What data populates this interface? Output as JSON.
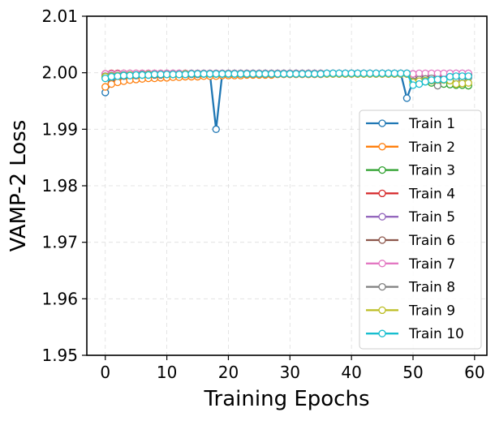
{
  "chart_data": {
    "type": "line",
    "title": "",
    "xlabel": "Training Epochs",
    "ylabel": "VAMP-2 Loss",
    "xlim": [
      -3,
      62
    ],
    "ylim": [
      1.95,
      2.01
    ],
    "xticks": [
      0,
      10,
      20,
      30,
      40,
      50,
      60
    ],
    "yticks": [
      1.95,
      1.96,
      1.97,
      1.98,
      1.99,
      2.0,
      2.01
    ],
    "ytick_labels": [
      "1.95",
      "1.96",
      "1.97",
      "1.98",
      "1.99",
      "2.00",
      "2.01"
    ],
    "grid": true,
    "legend_position": "right",
    "x": [
      0,
      1,
      2,
      3,
      4,
      5,
      6,
      7,
      8,
      9,
      10,
      11,
      12,
      13,
      14,
      15,
      16,
      17,
      18,
      19,
      20,
      21,
      22,
      23,
      24,
      25,
      26,
      27,
      28,
      29,
      30,
      31,
      32,
      33,
      34,
      35,
      36,
      37,
      38,
      39,
      40,
      41,
      42,
      43,
      44,
      45,
      46,
      47,
      48,
      49,
      50,
      51,
      52,
      53,
      54,
      55,
      56,
      57,
      58,
      59
    ],
    "series": [
      {
        "name": "Train 1",
        "color": "#1f77b4",
        "values": [
          1.9965,
          1.9982,
          1.9989,
          1.9992,
          1.9994,
          1.9995,
          1.9996,
          1.9996,
          1.9997,
          1.9997,
          1.9997,
          1.9998,
          1.9998,
          1.9998,
          1.9998,
          1.9998,
          1.9998,
          1.9998,
          1.99,
          1.9998,
          1.9998,
          1.9998,
          1.9999,
          1.9999,
          1.9999,
          1.9999,
          1.9999,
          1.9999,
          1.9999,
          1.9999,
          1.9999,
          1.9999,
          1.9999,
          1.9999,
          1.9999,
          1.9999,
          1.9999,
          1.9999,
          1.9999,
          1.9999,
          1.9999,
          1.9999,
          1.9999,
          1.9999,
          1.9999,
          1.9999,
          1.9999,
          1.9999,
          1.9999,
          1.9955,
          1.9985,
          1.999,
          1.9992,
          1.9993,
          1.9994,
          1.9995,
          1.9995,
          1.9996,
          1.9996,
          1.9996
        ]
      },
      {
        "name": "Train 2",
        "color": "#ff7f0e",
        "values": [
          1.9975,
          1.998,
          1.9983,
          1.9985,
          1.9987,
          1.9988,
          1.9989,
          1.999,
          1.999,
          1.9991,
          1.9991,
          1.9992,
          1.9992,
          1.9993,
          1.9993,
          1.9993,
          1.9994,
          1.9994,
          1.9994,
          1.9995,
          1.9995,
          1.9995,
          1.9995,
          1.9996,
          1.9996,
          1.9996,
          1.9996,
          1.9996,
          1.9997,
          1.9997,
          1.9997,
          1.9997,
          1.9997,
          1.9997,
          1.9997,
          1.9997,
          1.9998,
          1.9998,
          1.9998,
          1.9998,
          1.9998,
          1.9998,
          1.9998,
          1.9998,
          1.9998,
          1.9998,
          1.9998,
          1.9998,
          1.9998,
          1.9998,
          1.9992,
          1.9993,
          1.9994,
          1.9994,
          1.9995,
          1.9995,
          1.9996,
          1.9996,
          1.9996,
          1.9997
        ]
      },
      {
        "name": "Train 3",
        "color": "#2ca02c",
        "values": [
          1.9995,
          1.9996,
          1.9996,
          1.9997,
          1.9997,
          1.9997,
          1.9998,
          1.9998,
          1.9998,
          1.9998,
          1.9998,
          1.9998,
          1.9998,
          1.9998,
          1.9998,
          1.9998,
          1.9998,
          1.9998,
          1.9998,
          1.9998,
          1.9999,
          1.9999,
          1.9999,
          1.9999,
          1.9999,
          1.9999,
          1.9999,
          1.9999,
          1.9999,
          1.9999,
          1.9999,
          1.9999,
          1.9999,
          1.9999,
          1.9999,
          1.9999,
          1.9999,
          1.9999,
          1.9999,
          1.9999,
          1.9999,
          1.9999,
          1.9999,
          1.9999,
          1.9999,
          1.9999,
          1.9999,
          1.9999,
          1.9999,
          1.9999,
          1.999,
          1.9985,
          1.9984,
          1.9982,
          1.9981,
          1.998,
          1.9979,
          1.9978,
          1.9978,
          1.9977
        ]
      },
      {
        "name": "Train 4",
        "color": "#d62728",
        "values": [
          1.9998,
          1.9999,
          1.9999,
          1.9999,
          1.9999,
          1.9999,
          1.9999,
          1.9999,
          1.9999,
          1.9999,
          1.9999,
          1.9999,
          1.9999,
          1.9999,
          1.9999,
          1.9999,
          1.9999,
          1.9999,
          1.9999,
          1.9999,
          1.9999,
          1.9999,
          1.9999,
          1.9999,
          1.9999,
          1.9999,
          1.9999,
          1.9999,
          1.9999,
          1.9999,
          1.9999,
          1.9999,
          1.9999,
          1.9999,
          1.9999,
          1.9999,
          1.9999,
          1.9999,
          1.9999,
          1.9999,
          1.9999,
          1.9999,
          1.9999,
          1.9999,
          1.9999,
          1.9999,
          1.9999,
          1.9999,
          1.9999,
          1.9999,
          1.9997,
          1.9998,
          1.9998,
          1.9998,
          1.9998,
          1.9998,
          1.9998,
          1.9998,
          1.9998,
          1.9998
        ]
      },
      {
        "name": "Train 5",
        "color": "#9467bd",
        "values": [
          1.9997,
          1.9998,
          1.9998,
          1.9998,
          1.9998,
          1.9998,
          1.9998,
          1.9998,
          1.9998,
          1.9998,
          1.9999,
          1.9999,
          1.9999,
          1.9999,
          1.9999,
          1.9999,
          1.9999,
          1.9999,
          1.9999,
          1.9999,
          1.9999,
          1.9999,
          1.9999,
          1.9999,
          1.9999,
          1.9999,
          1.9999,
          1.9999,
          1.9999,
          1.9999,
          1.9999,
          1.9999,
          1.9999,
          1.9999,
          1.9999,
          1.9999,
          1.9999,
          1.9999,
          1.9999,
          1.9999,
          1.9999,
          1.9999,
          1.9999,
          1.9999,
          1.9999,
          1.9999,
          1.9999,
          1.9999,
          1.9999,
          1.9999,
          1.9998,
          1.9994,
          1.9997,
          1.9998,
          1.9998,
          1.9998,
          1.9999,
          1.9999,
          1.9999,
          1.9999
        ]
      },
      {
        "name": "Train 6",
        "color": "#8c564b",
        "values": [
          1.9992,
          1.9993,
          1.9994,
          1.9994,
          1.9995,
          1.9995,
          1.9996,
          1.9996,
          1.9996,
          1.9996,
          1.9997,
          1.9997,
          1.9997,
          1.9997,
          1.9997,
          1.9997,
          1.9998,
          1.9998,
          1.9998,
          1.9998,
          1.9998,
          1.9998,
          1.9998,
          1.9998,
          1.9998,
          1.9998,
          1.9998,
          1.9998,
          1.9998,
          1.9998,
          1.9998,
          1.9998,
          1.9998,
          1.9998,
          1.9998,
          1.9998,
          1.9998,
          1.9998,
          1.9998,
          1.9998,
          1.9998,
          1.9998,
          1.9998,
          1.9998,
          1.9998,
          1.9998,
          1.9998,
          1.9998,
          1.9998,
          1.9998,
          1.9993,
          1.9994,
          1.9995,
          1.9995,
          1.9996,
          1.9996,
          1.9996,
          1.9997,
          1.9997,
          1.9997
        ]
      },
      {
        "name": "Train 7",
        "color": "#e377c2",
        "values": [
          1.9998,
          1.9998,
          1.9998,
          1.9999,
          1.9999,
          1.9999,
          1.9999,
          1.9999,
          1.9999,
          1.9999,
          1.9999,
          1.9999,
          1.9999,
          1.9999,
          1.9999,
          1.9999,
          1.9999,
          1.9999,
          1.9999,
          1.9999,
          1.9999,
          1.9999,
          1.9999,
          1.9999,
          1.9999,
          1.9999,
          1.9999,
          1.9999,
          1.9999,
          1.9999,
          1.9999,
          1.9999,
          1.9999,
          1.9999,
          1.9999,
          1.9999,
          1.9999,
          1.9999,
          1.9999,
          1.9999,
          1.9999,
          1.9999,
          1.9999,
          1.9999,
          1.9999,
          1.9999,
          1.9999,
          1.9999,
          1.9999,
          1.9999,
          1.9998,
          1.9999,
          1.9999,
          1.9999,
          1.9999,
          1.9999,
          1.9999,
          1.9999,
          1.9999,
          1.9999
        ]
      },
      {
        "name": "Train 8",
        "color": "#7f7f7f",
        "values": [
          1.9994,
          1.9995,
          1.9995,
          1.9996,
          1.9996,
          1.9996,
          1.9997,
          1.9997,
          1.9997,
          1.9997,
          1.9997,
          1.9997,
          1.9997,
          1.9997,
          1.9998,
          1.9998,
          1.9998,
          1.9998,
          1.9998,
          1.9998,
          1.9998,
          1.9998,
          1.9998,
          1.9998,
          1.9998,
          1.9998,
          1.9998,
          1.9998,
          1.9998,
          1.9998,
          1.9998,
          1.9998,
          1.9998,
          1.9998,
          1.9998,
          1.9998,
          1.9998,
          1.9998,
          1.9998,
          1.9998,
          1.9998,
          1.9998,
          1.9998,
          1.9998,
          1.9998,
          1.9998,
          1.9998,
          1.9998,
          1.9998,
          1.9998,
          1.9985,
          1.9988,
          1.9989,
          1.999,
          1.9977,
          1.9988,
          1.9989,
          1.999,
          1.999,
          1.9991
        ]
      },
      {
        "name": "Train 9",
        "color": "#bcbd22",
        "values": [
          1.9993,
          1.9994,
          1.9995,
          1.9995,
          1.9996,
          1.9996,
          1.9996,
          1.9997,
          1.9997,
          1.9997,
          1.9997,
          1.9997,
          1.9997,
          1.9998,
          1.9998,
          1.9998,
          1.9998,
          1.9998,
          1.9998,
          1.9998,
          1.9998,
          1.9998,
          1.9998,
          1.9998,
          1.9998,
          1.9998,
          1.9998,
          1.9998,
          1.9998,
          1.9998,
          1.9998,
          1.9998,
          1.9998,
          1.9998,
          1.9998,
          1.9998,
          1.9998,
          1.9998,
          1.9998,
          1.9998,
          1.9998,
          1.9998,
          1.9998,
          1.9998,
          1.9998,
          1.9998,
          1.9998,
          1.9998,
          1.9998,
          1.9998,
          1.9983,
          1.9985,
          1.9986,
          1.9986,
          1.9987,
          1.9987,
          1.9986,
          1.998,
          1.9981,
          1.9982
        ]
      },
      {
        "name": "Train 10",
        "color": "#17becf",
        "values": [
          1.999,
          1.9993,
          1.9994,
          1.9995,
          1.9995,
          1.9996,
          1.9996,
          1.9996,
          1.9997,
          1.9997,
          1.9997,
          1.9997,
          1.9997,
          1.9997,
          1.9998,
          1.9998,
          1.9998,
          1.9998,
          1.9998,
          1.9998,
          1.9998,
          1.9998,
          1.9998,
          1.9998,
          1.9998,
          1.9998,
          1.9998,
          1.9998,
          1.9998,
          1.9998,
          1.9998,
          1.9998,
          1.9998,
          1.9998,
          1.9998,
          1.9998,
          1.9999,
          1.9999,
          1.9999,
          1.9999,
          1.9999,
          1.9999,
          1.9999,
          1.9999,
          1.9999,
          1.9999,
          1.9999,
          1.9999,
          1.9999,
          1.9999,
          1.9978,
          1.998,
          1.9984,
          1.9987,
          1.9988,
          1.9988,
          1.9993,
          1.9994,
          1.9994,
          1.9994
        ]
      }
    ]
  }
}
